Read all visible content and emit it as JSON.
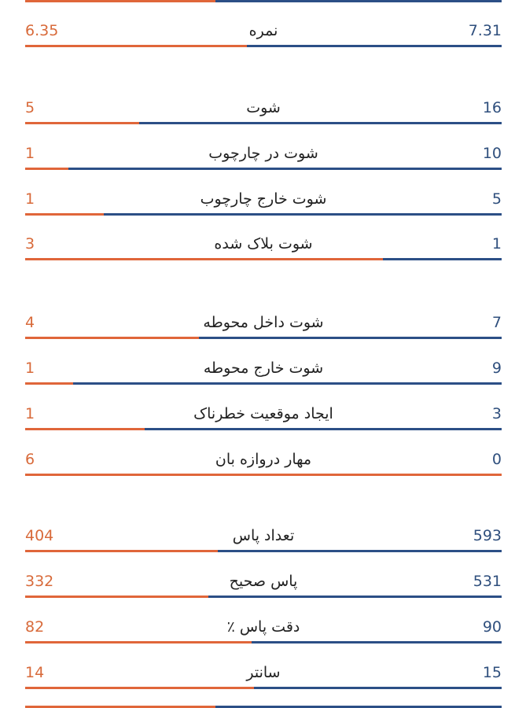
{
  "colors": {
    "away": "#e0663a",
    "home": "#2c4f86",
    "away_text": "#d86a3a",
    "home_text": "#2f4f7d",
    "label_text": "#222222"
  },
  "top_bar": {
    "away_share": 0.4
  },
  "bottom_bar": {
    "away_share": 0.4
  },
  "stats": [
    {
      "label": "نمره",
      "away": "6.35",
      "home": "7.31",
      "away_share": 0.465
    },
    {
      "label": "شوت",
      "away": "5",
      "home": "16",
      "away_share": 0.24
    },
    {
      "label": "شوت در چارچوب",
      "away": "1",
      "home": "10",
      "away_share": 0.09
    },
    {
      "label": "شوت خارج چارچوب",
      "away": "1",
      "home": "5",
      "away_share": 0.165
    },
    {
      "label": "شوت بلاک شده",
      "away": "3",
      "home": "1",
      "away_share": 0.75
    },
    {
      "label": "شوت داخل محوطه",
      "away": "4",
      "home": "7",
      "away_share": 0.365
    },
    {
      "label": "شوت خارج محوطه",
      "away": "1",
      "home": "9",
      "away_share": 0.1
    },
    {
      "label": "ایجاد موقعیت خطرناک",
      "away": "1",
      "home": "3",
      "away_share": 0.25
    },
    {
      "label": "مهار دروازه بان",
      "away": "6",
      "home": "0",
      "away_share": 1.0
    },
    {
      "label": "تعداد پاس",
      "away": "404",
      "home": "593",
      "away_share": 0.405
    },
    {
      "label": "پاس صحیح",
      "away": "332",
      "home": "531",
      "away_share": 0.385
    },
    {
      "label": "دقت پاس ٪",
      "away": "82",
      "home": "90",
      "away_share": 0.475
    },
    {
      "label": "سانتر",
      "away": "14",
      "home": "15",
      "away_share": 0.48
    }
  ]
}
